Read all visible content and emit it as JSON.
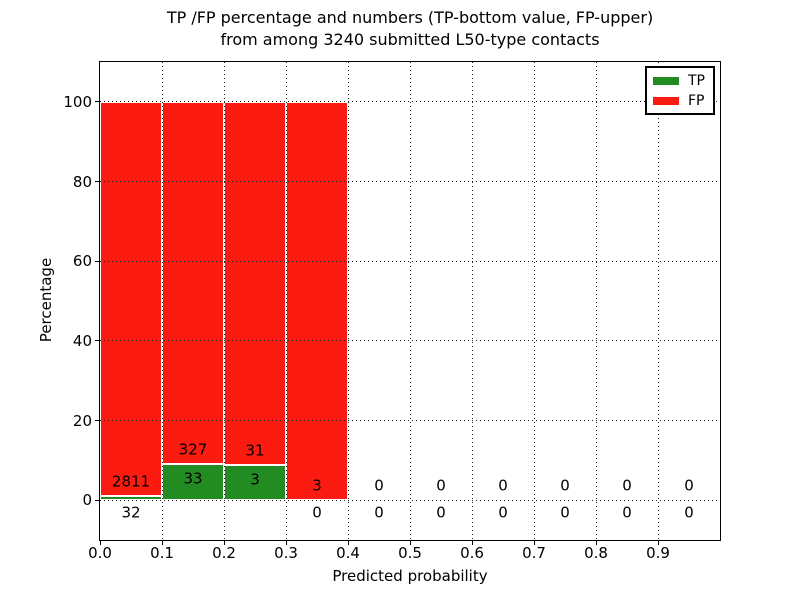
{
  "figure": {
    "background": "#ffffff"
  },
  "title": {
    "line1": "TP /FP percentage and numbers (TP-bottom value, FP-upper)",
    "line2": "from among 3240 submitted L50-type contacts"
  },
  "x_axis": {
    "label": "Predicted probability",
    "tick_labels": [
      "0.0",
      "0.1",
      "0.2",
      "0.3",
      "0.4",
      "0.5",
      "0.6",
      "0.7",
      "0.8",
      "0.9"
    ]
  },
  "y_axis": {
    "label": "Percentage",
    "tick_labels": [
      "0",
      "20",
      "40",
      "60",
      "80",
      "100"
    ]
  },
  "legend": {
    "items": [
      {
        "label": "TP",
        "color": "#228b22"
      },
      {
        "label": "FP",
        "color": "#fb1b10"
      }
    ]
  },
  "chart_data": {
    "type": "bar",
    "stacked": true,
    "normalization": "each non-empty bin stacked to 100%",
    "title": "TP /FP percentage and numbers (TP-bottom value, FP-upper) from among 3240 submitted L50-type contacts",
    "xlabel": "Predicted probability",
    "ylabel": "Percentage",
    "xlim": [
      0.0,
      1.0
    ],
    "ylim": [
      -10,
      110
    ],
    "x_ticks": [
      0.0,
      0.1,
      0.2,
      0.3,
      0.4,
      0.5,
      0.6,
      0.7,
      0.8,
      0.9
    ],
    "y_ticks": [
      0,
      20,
      40,
      60,
      80,
      100
    ],
    "grid": "dotted",
    "legend_position": "upper right",
    "total_contacts": 3240,
    "bin_edges": [
      0.0,
      0.1,
      0.2,
      0.3,
      0.4,
      0.5,
      0.6,
      0.7,
      0.8,
      0.9,
      1.0
    ],
    "series": [
      {
        "name": "TP",
        "color": "#228b22",
        "counts": [
          32,
          33,
          3,
          0,
          0,
          0,
          0,
          0,
          0,
          0
        ]
      },
      {
        "name": "FP",
        "color": "#fb1b10",
        "counts": [
          2811,
          327,
          31,
          3,
          0,
          0,
          0,
          0,
          0,
          0
        ]
      }
    ]
  }
}
